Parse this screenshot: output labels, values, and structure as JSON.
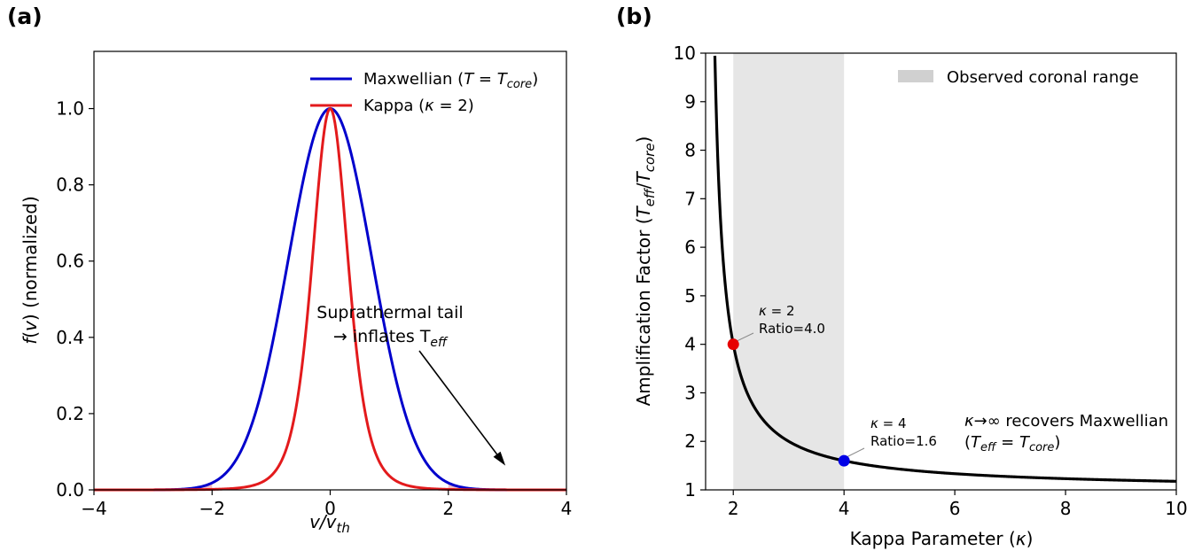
{
  "chart_data": [
    {
      "panel_label": "(a)",
      "type": "line",
      "xlabel": "v/v_th",
      "ylabel": "f(v) (normalized)",
      "xlim": [
        -4,
        4
      ],
      "ylim": [
        0,
        1.15
      ],
      "xticks": [
        "−4",
        "−2",
        "0",
        "2",
        "4"
      ],
      "xtick_values": [
        -4,
        -2,
        0,
        2,
        4
      ],
      "yticks": [
        "0.0",
        "0.2",
        "0.4",
        "0.6",
        "0.8",
        "1.0"
      ],
      "ytick_values": [
        0,
        0.2,
        0.4,
        0.6,
        0.8,
        1.0
      ],
      "grid": false,
      "legend_position": "top-right",
      "series": [
        {
          "name": "Maxwellian (T = T_core)",
          "color": "#0000cc",
          "kind": "maxwellian"
        },
        {
          "name": "Kappa (κ = 2)",
          "color": "#e31a1c",
          "kind": "kappa",
          "kappa": 2
        }
      ],
      "shaded_tail": {
        "color": "#f4b6bb",
        "from_abs_v": 2
      },
      "annotation": {
        "line1": "Suprathermal tail",
        "line2_prefix": "→ inflates T",
        "line2_sub": "eff",
        "arrow_to": [
          3,
          0.06
        ]
      }
    },
    {
      "panel_label": "(b)",
      "type": "line",
      "xlabel": "Kappa Parameter (κ)",
      "ylabel": "Amplification Factor (T_eff/T_core)",
      "xlim": [
        1.5,
        10
      ],
      "ylim": [
        1,
        10
      ],
      "xticks": [
        "2",
        "4",
        "6",
        "8",
        "10"
      ],
      "xtick_values": [
        2,
        4,
        6,
        8,
        10
      ],
      "yticks": [
        "1",
        "2",
        "3",
        "4",
        "5",
        "6",
        "7",
        "8",
        "9",
        "10"
      ],
      "ytick_values": [
        1,
        2,
        3,
        4,
        5,
        6,
        7,
        8,
        9,
        10
      ],
      "grid": false,
      "legend_position": "top-right",
      "curve": {
        "formula": "kappa/(kappa-1.5)",
        "color": "#000000"
      },
      "band": {
        "name": "Observed coronal range",
        "from": 2,
        "to": 4,
        "color": "#e6e6e6"
      },
      "points": [
        {
          "x": 2,
          "y": 4.0,
          "color": "#e60000",
          "label1": "κ = 2",
          "label2": "Ratio=4.0"
        },
        {
          "x": 4,
          "y": 1.6,
          "color": "#0000e6",
          "label1": "κ = 4",
          "label2": "Ratio=1.6"
        }
      ],
      "note": {
        "line1": "κ→∞ recovers Maxwellian",
        "line2": "(T_eff = T_core)"
      }
    }
  ]
}
